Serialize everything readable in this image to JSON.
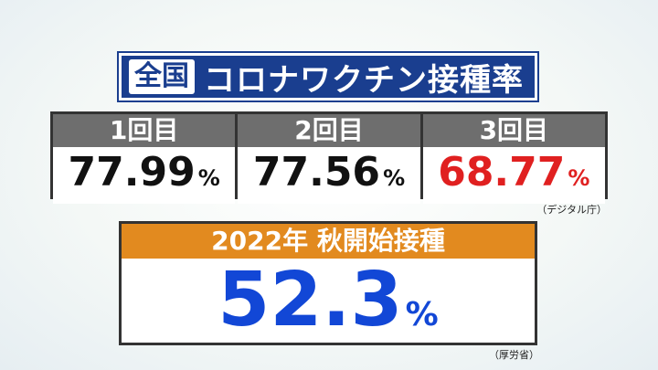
{
  "header": {
    "badge": "全国",
    "title": "コロナワクチン接種率"
  },
  "table": {
    "columns": [
      {
        "label": "1回目",
        "value": "77.99",
        "unit": "%"
      },
      {
        "label": "2回目",
        "value": "77.56",
        "unit": "%"
      },
      {
        "label": "3回目",
        "value": "68.77",
        "unit": "%"
      }
    ],
    "source": "（デジタル庁）"
  },
  "autumn": {
    "label": "2022年 秋開始接種",
    "value": "52.3",
    "unit": "%",
    "source": "（厚労省）"
  }
}
